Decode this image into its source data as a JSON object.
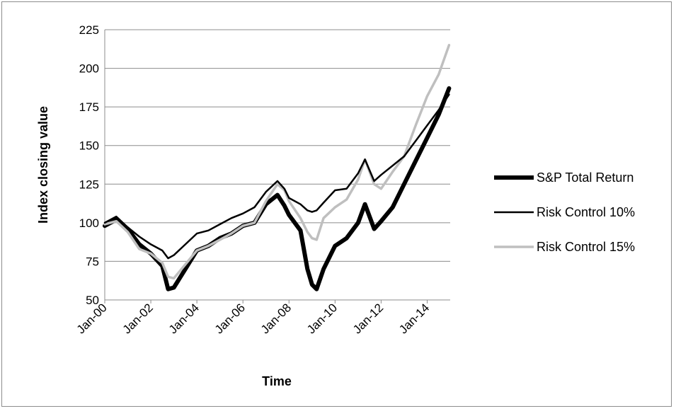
{
  "chart_data": {
    "type": "line",
    "title": "",
    "xlabel": "Time",
    "ylabel": "Index closing value",
    "ylim": [
      50,
      225
    ],
    "y_ticks": [
      50,
      75,
      100,
      125,
      150,
      175,
      200,
      225
    ],
    "x_ticks": [
      "Jan-00",
      "Jan-02",
      "Jan-04",
      "Jan-06",
      "Jan-08",
      "Jan-10",
      "Jan-12",
      "Jan-14"
    ],
    "grid": "horizontal",
    "legend_position": "right",
    "x": [
      2000.0,
      2000.5,
      2001.0,
      2001.5,
      2002.0,
      2002.5,
      2002.75,
      2003.0,
      2003.5,
      2004.0,
      2004.5,
      2005.0,
      2005.5,
      2006.0,
      2006.5,
      2007.0,
      2007.5,
      2007.8,
      2008.0,
      2008.5,
      2008.8,
      2009.0,
      2009.2,
      2009.5,
      2010.0,
      2010.5,
      2011.0,
      2011.3,
      2011.7,
      2012.0,
      2012.5,
      2013.0,
      2013.5,
      2014.0,
      2014.5,
      2014.95
    ],
    "series": [
      {
        "name": "S&P Total Return",
        "color": "#000000",
        "style": "thick",
        "values": [
          98,
          102,
          96,
          86,
          80,
          72,
          57,
          58,
          70,
          82,
          85,
          90,
          93,
          98,
          100,
          112,
          118,
          111,
          105,
          95,
          70,
          60,
          57,
          70,
          85,
          90,
          100,
          112,
          96,
          101,
          110,
          125,
          140,
          155,
          170,
          187
        ]
      },
      {
        "name": "Risk Control 10%",
        "color": "#000000",
        "style": "thin",
        "values": [
          100,
          104,
          97,
          91,
          86,
          82,
          77,
          79,
          86,
          93,
          95,
          99,
          103,
          106,
          110,
          120,
          127,
          122,
          116,
          112,
          108,
          107,
          108,
          113,
          121,
          122,
          132,
          141,
          127,
          131,
          137,
          143,
          153,
          163,
          173,
          183
        ]
      },
      {
        "name": "Risk Control 15%",
        "color": "#bfbfbf",
        "style": "medium",
        "values": [
          99,
          101,
          94,
          83,
          80,
          74,
          65,
          64,
          73,
          82,
          85,
          89,
          93,
          98,
          100,
          114,
          125,
          121,
          114,
          103,
          94,
          90,
          89,
          103,
          110,
          115,
          128,
          141,
          125,
          122,
          133,
          143,
          163,
          182,
          196,
          215
        ]
      }
    ]
  }
}
